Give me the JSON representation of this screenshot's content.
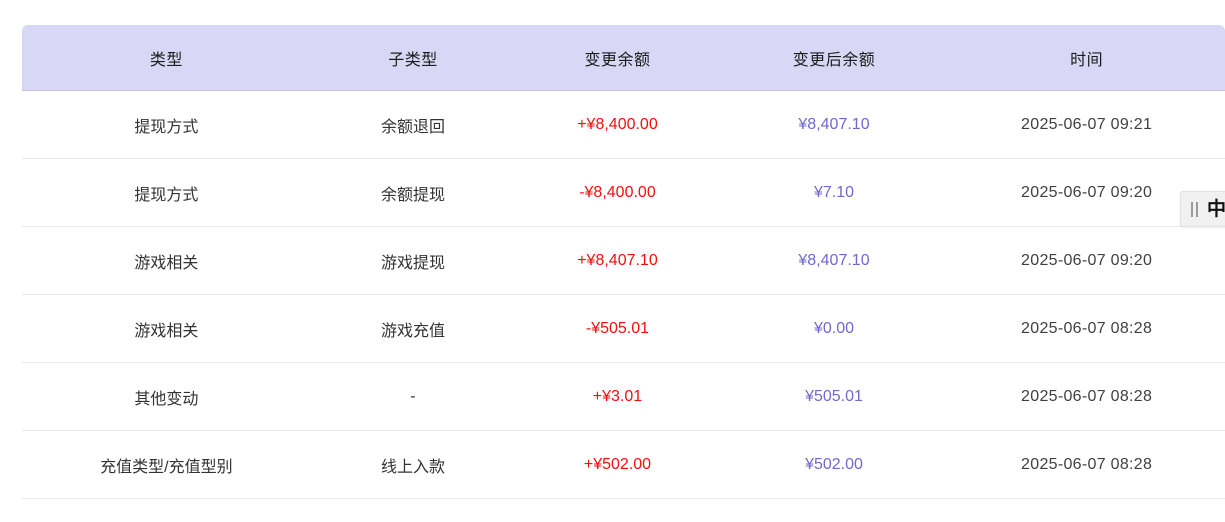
{
  "table": {
    "columns": [
      {
        "label": "类型"
      },
      {
        "label": "子类型"
      },
      {
        "label": "变更余额"
      },
      {
        "label": "变更后余额"
      },
      {
        "label": "时间"
      }
    ],
    "rows": [
      {
        "type": "提现方式",
        "subtype": "余额退回",
        "change": "+¥8,400.00",
        "change_direction": "positive",
        "balance_after": "¥8,407.10",
        "time": "2025-06-07 09:21"
      },
      {
        "type": "提现方式",
        "subtype": "余额提现",
        "change": "-¥8,400.00",
        "change_direction": "negative",
        "balance_after": "¥7.10",
        "time": "2025-06-07 09:20"
      },
      {
        "type": "游戏相关",
        "subtype": "游戏提现",
        "change": "+¥8,407.10",
        "change_direction": "positive",
        "balance_after": "¥8,407.10",
        "time": "2025-06-07 09:20"
      },
      {
        "type": "游戏相关",
        "subtype": "游戏充值",
        "change": "-¥505.01",
        "change_direction": "negative",
        "balance_after": "¥0.00",
        "time": "2025-06-07 08:28"
      },
      {
        "type": "其他变动",
        "subtype": "-",
        "change": "+¥3.01",
        "change_direction": "positive",
        "balance_after": "¥505.01",
        "time": "2025-06-07 08:28"
      },
      {
        "type": "充值类型/充值型别",
        "subtype": "线上入款",
        "change": "+¥502.00",
        "change_direction": "positive",
        "balance_after": "¥502.00",
        "time": "2025-06-07 08:28"
      }
    ]
  },
  "ime_toolbar": {
    "mode_indicator": "中"
  },
  "colors": {
    "header_bg": "#d8d8f6",
    "change_amount": "#f80d0d",
    "balance_after": "#7168ce",
    "time_text": "#404040",
    "text_primary": "#333333",
    "row_divider": "#e9e9e9",
    "ime_bg": "#f1f1f1"
  }
}
